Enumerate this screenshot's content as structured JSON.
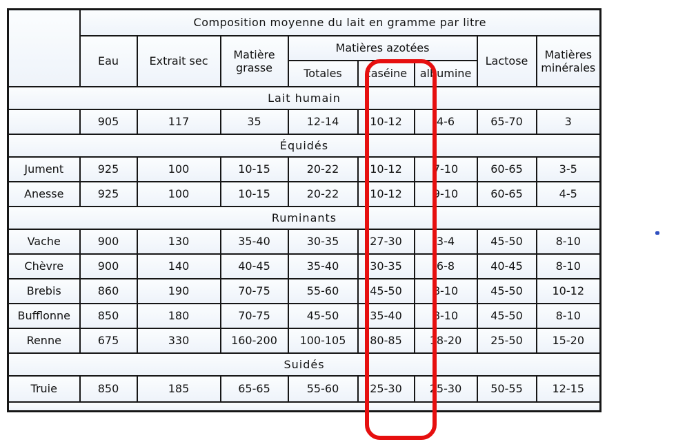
{
  "title": "Composition moyenne du lait en gramme par litre",
  "header": {
    "corner": "",
    "eau": "Eau",
    "extrait_sec": "Extrait sec",
    "matiere_grasse": "Matière grasse",
    "matieres_azotees": "Matières azotées",
    "totales": "Totales",
    "caseine": "caséine",
    "albumine": "albumine",
    "lactose": "Lactose",
    "matieres_minerales": "Matières minérales"
  },
  "columns": [
    "Eau",
    "Extrait sec",
    "Matière grasse",
    "Totales",
    "caséine",
    "albumine",
    "Lactose",
    "Matières minérales"
  ],
  "groups": [
    {
      "section": "Lait humain",
      "rows": [
        {
          "name": "",
          "values": [
            "905",
            "117",
            "35",
            "12-14",
            "10-12",
            "4-6",
            "65-70",
            "3"
          ]
        }
      ]
    },
    {
      "section": "Équidés",
      "rows": [
        {
          "name": "Jument",
          "values": [
            "925",
            "100",
            "10-15",
            "20-22",
            "10-12",
            "7-10",
            "60-65",
            "3-5"
          ]
        },
        {
          "name": "Anesse",
          "values": [
            "925",
            "100",
            "10-15",
            "20-22",
            "10-12",
            "9-10",
            "60-65",
            "4-5"
          ]
        }
      ]
    },
    {
      "section": "Ruminants",
      "rows": [
        {
          "name": "Vache",
          "values": [
            "900",
            "130",
            "35-40",
            "30-35",
            "27-30",
            "3-4",
            "45-50",
            "8-10"
          ]
        },
        {
          "name": "Chèvre",
          "values": [
            "900",
            "140",
            "40-45",
            "35-40",
            "30-35",
            "6-8",
            "40-45",
            "8-10"
          ]
        },
        {
          "name": "Brebis",
          "values": [
            "860",
            "190",
            "70-75",
            "55-60",
            "45-50",
            "8-10",
            "45-50",
            "10-12"
          ]
        },
        {
          "name": "Bufflonne",
          "values": [
            "850",
            "180",
            "70-75",
            "45-50",
            "35-40",
            "8-10",
            "45-50",
            "8-10"
          ]
        },
        {
          "name": "Renne",
          "values": [
            "675",
            "330",
            "160-200",
            "100-105",
            "80-85",
            "18-20",
            "25-50",
            "15-20"
          ]
        }
      ]
    },
    {
      "section": "Suidés",
      "rows": [
        {
          "name": "Truie",
          "values": [
            "850",
            "185",
            "65-65",
            "55-60",
            "25-30",
            "25-30",
            "50-55",
            "12-15"
          ]
        }
      ]
    }
  ],
  "bottom_partial_bar": true,
  "highlight": {
    "column": "caséine",
    "color": "#e60f0f"
  },
  "colors": {
    "section_bg": "#a9c9e9",
    "row_bg": "#f2f6fb",
    "border": "#161616"
  }
}
